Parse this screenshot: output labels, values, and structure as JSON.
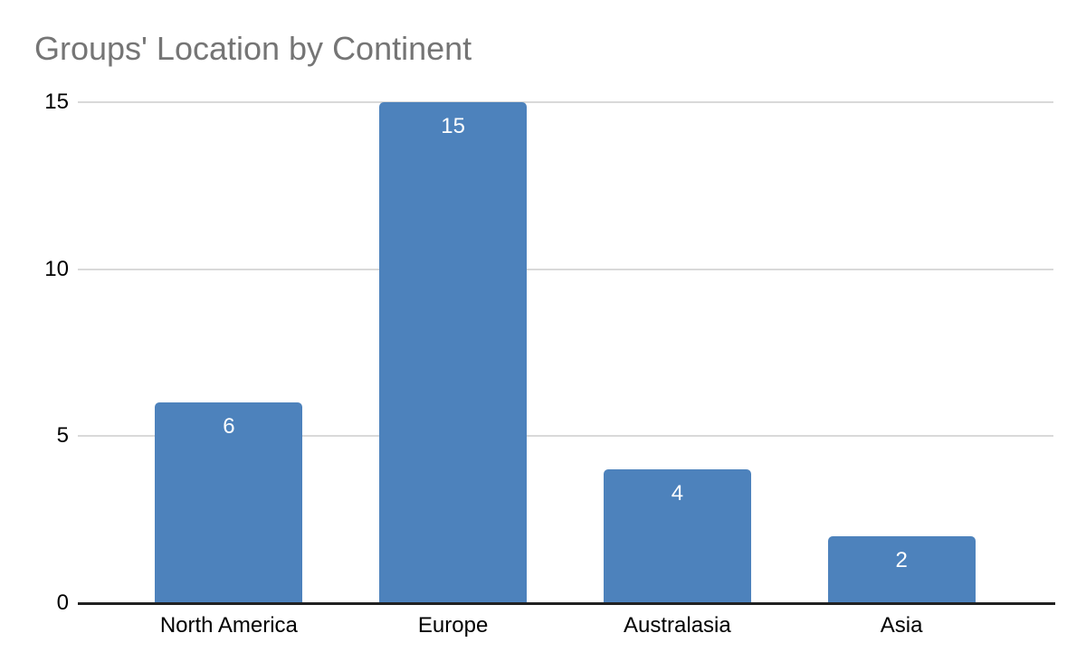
{
  "chart_data": {
    "type": "bar",
    "title": "Groups' Location by Continent",
    "categories": [
      "North America",
      "Europe",
      "Australasia",
      "Asia"
    ],
    "values": [
      6,
      15,
      4,
      2
    ],
    "data_labels": [
      "6",
      "15",
      "4",
      "2"
    ],
    "yticks": [
      0,
      5,
      10,
      15
    ],
    "ylim": [
      0,
      15
    ],
    "xlabel": "",
    "ylabel": "",
    "grid": true,
    "legend_position": "none",
    "colors": {
      "background": "#ffffff",
      "bar": "#4d82bc",
      "data_label": "#ffffff",
      "title": "#757575",
      "axis_line": "#212121",
      "gridline": "#d9d9d9",
      "tick_label": "#000000",
      "category_label": "#000000"
    }
  }
}
